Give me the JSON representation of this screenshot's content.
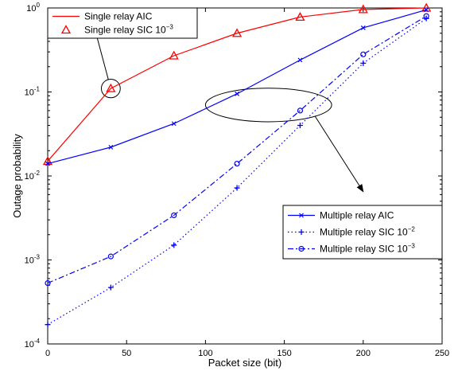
{
  "chart_data": {
    "type": "line",
    "xlabel": "Packet size (bit)",
    "ylabel": "Outage probability",
    "xlim": [
      0,
      250
    ],
    "ylim": [
      0.0001,
      1
    ],
    "yscale": "log",
    "grid": false,
    "xticks": [
      0,
      50,
      100,
      150,
      200,
      250
    ],
    "xtick_labels": [
      "0",
      "50",
      "100",
      "150",
      "200",
      "250"
    ],
    "yticks": [
      0.0001,
      0.001,
      0.01,
      0.1,
      1
    ],
    "ytick_labels": [
      {
        "base": "10",
        "exp": "-4"
      },
      {
        "base": "10",
        "exp": "-3"
      },
      {
        "base": "10",
        "exp": "-2"
      },
      {
        "base": "10",
        "exp": "-1"
      },
      {
        "base": "10",
        "exp": "0"
      }
    ],
    "series": [
      {
        "name": "Single relay AIC",
        "color": "#ff0000",
        "dash": "solid",
        "marker": "none",
        "x": [
          0,
          40,
          80,
          120,
          160,
          200,
          240
        ],
        "y": [
          0.015,
          0.11,
          0.27,
          0.5,
          0.78,
          0.96,
          1.0
        ]
      },
      {
        "name": "Single relay SIC 10",
        "name_sup": "−3",
        "color": "#ff0000",
        "dash": "none",
        "marker": "triangle",
        "x": [
          0,
          40,
          80,
          120,
          160,
          200,
          240
        ],
        "y": [
          0.015,
          0.11,
          0.27,
          0.5,
          0.78,
          0.96,
          1.0
        ]
      },
      {
        "name": "Multiple relay AIC",
        "color": "#0000ff",
        "dash": "solid",
        "marker": "x",
        "x": [
          0,
          40,
          80,
          120,
          160,
          200,
          240
        ],
        "y": [
          0.014,
          0.022,
          0.042,
          0.095,
          0.24,
          0.58,
          0.95
        ]
      },
      {
        "name": "Multiple relay SIC 10",
        "name_sup": "−2",
        "color": "#0000ff",
        "dash": "dotted",
        "marker": "plus",
        "x": [
          0,
          40,
          80,
          120,
          160,
          200,
          240
        ],
        "y": [
          0.00017,
          0.00047,
          0.0015,
          0.0072,
          0.04,
          0.22,
          0.75
        ]
      },
      {
        "name": "Multiple relay SIC 10",
        "name_sup": "−3",
        "color": "#0000ff",
        "dash": "dashdot",
        "marker": "circle",
        "x": [
          0,
          40,
          80,
          120,
          160,
          200,
          240
        ],
        "y": [
          0.00053,
          0.0011,
          0.0034,
          0.014,
          0.06,
          0.28,
          0.8
        ]
      }
    ],
    "legends": [
      {
        "placement": "top-left",
        "series": [
          0,
          1
        ]
      },
      {
        "placement": "bottom-right",
        "series": [
          2,
          3,
          4
        ]
      }
    ],
    "annotations": [
      {
        "type": "ellipse",
        "center": [
          40,
          0.11
        ],
        "r_x": 6,
        "r_y_decades": 0.11,
        "arrow_to": [
          30,
          0.55
        ]
      },
      {
        "type": "ellipse",
        "center": [
          140,
          0.07
        ],
        "r_x": 40,
        "r_y_decades": 0.2,
        "arrow_to": [
          200,
          0.0065
        ]
      }
    ]
  }
}
